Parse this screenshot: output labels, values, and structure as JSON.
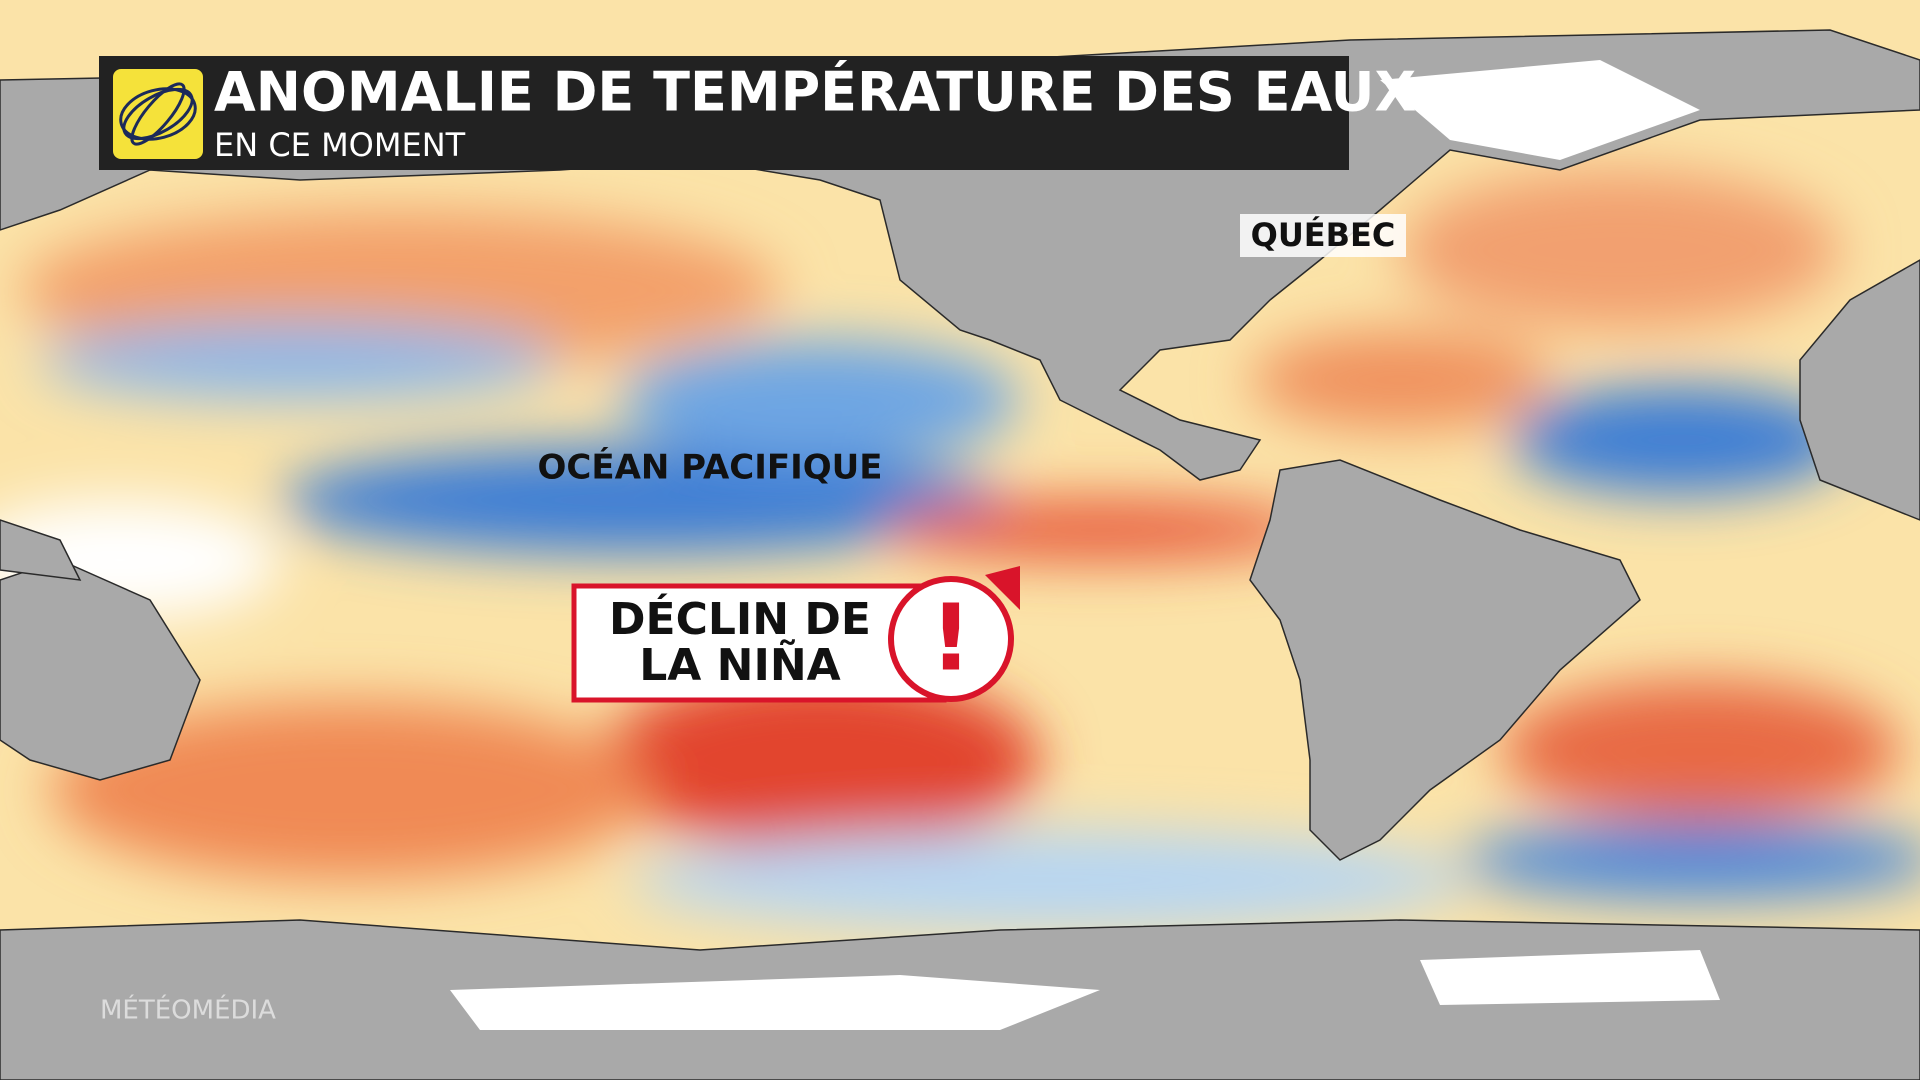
{
  "header": {
    "title": "ANOMALIE DE TEMPÉRATURE DES EAUX",
    "subtitle": "EN CE MOMENT"
  },
  "labels": {
    "quebec": "QUÉBEC",
    "pacific": "OCÉAN PACIFIQUE"
  },
  "callout": {
    "lines": [
      "DÉCLIN DE",
      "LA NIÑA"
    ],
    "icon": "!"
  },
  "watermark": "MÉTÉOMÉDIA"
}
